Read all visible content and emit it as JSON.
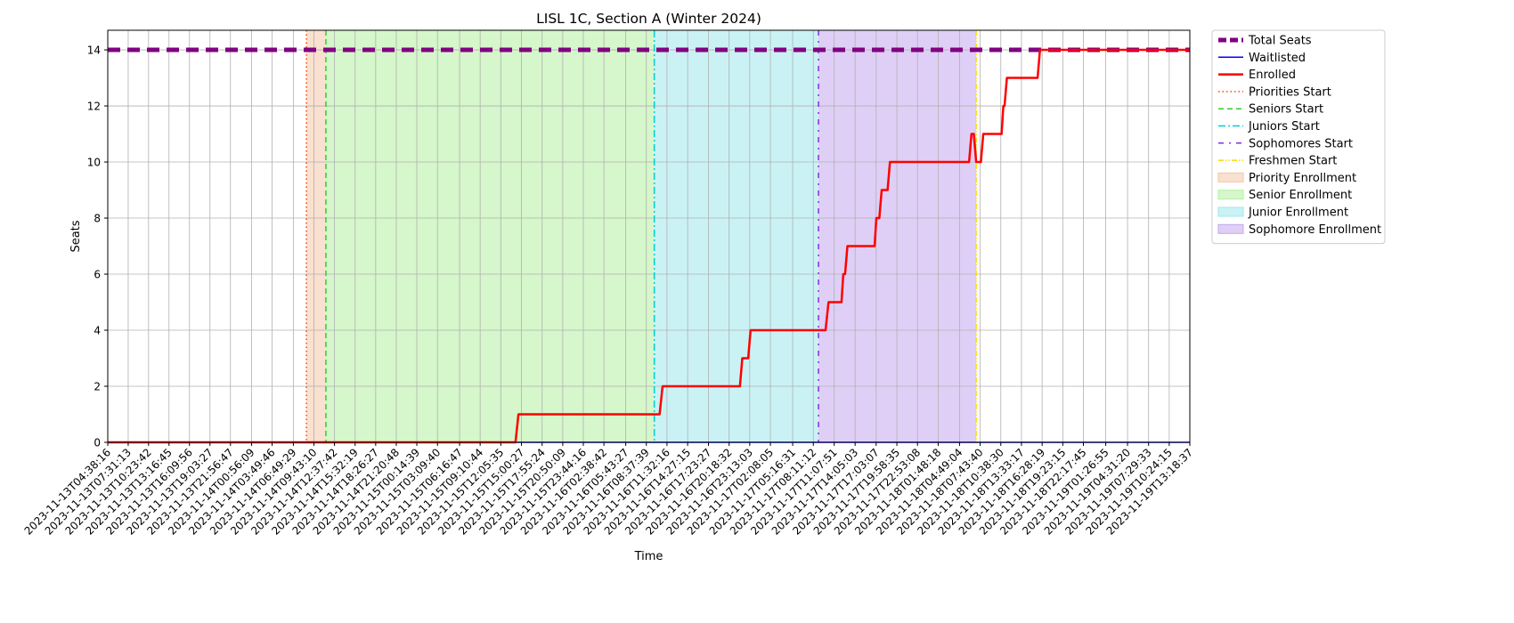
{
  "chart_data": {
    "type": "line",
    "title": "LISL 1C, Section A (Winter 2024)",
    "xlabel": "Time",
    "ylabel": "Seats",
    "ylim": [
      0,
      14.7
    ],
    "xlim": [
      "2023-11-13T04:38:16",
      "2023-11-19T13:18:37"
    ],
    "y_ticks": [
      0,
      2,
      4,
      6,
      8,
      10,
      12,
      14
    ],
    "x_ticks": [
      "2023-11-13T04:38:16",
      "2023-11-13T07:31:13",
      "2023-11-13T10:23:42",
      "2023-11-13T13:16:45",
      "2023-11-13T16:09:56",
      "2023-11-13T19:03:27",
      "2023-11-13T21:56:47",
      "2023-11-14T00:56:09",
      "2023-11-14T03:49:46",
      "2023-11-14T06:49:29",
      "2023-11-14T09:43:10",
      "2023-11-14T12:37:42",
      "2023-11-14T15:32:19",
      "2023-11-14T18:26:27",
      "2023-11-14T21:20:48",
      "2023-11-15T00:14:39",
      "2023-11-15T03:09:40",
      "2023-11-15T06:16:47",
      "2023-11-15T09:10:44",
      "2023-11-15T12:05:35",
      "2023-11-15T15:00:27",
      "2023-11-15T17:55:24",
      "2023-11-15T20:50:09",
      "2023-11-15T23:44:16",
      "2023-11-16T02:38:42",
      "2023-11-16T05:43:27",
      "2023-11-16T08:37:39",
      "2023-11-16T11:32:16",
      "2023-11-16T14:27:15",
      "2023-11-16T17:23:27",
      "2023-11-16T20:18:32",
      "2023-11-16T23:13:03",
      "2023-11-17T02:08:05",
      "2023-11-17T05:16:31",
      "2023-11-17T08:11:12",
      "2023-11-17T11:07:51",
      "2023-11-17T14:05:03",
      "2023-11-17T17:03:07",
      "2023-11-17T19:58:35",
      "2023-11-17T22:53:08",
      "2023-11-18T01:48:18",
      "2023-11-18T04:49:04",
      "2023-11-18T07:43:40",
      "2023-11-18T10:38:30",
      "2023-11-18T13:33:17",
      "2023-11-18T16:28:19",
      "2023-11-18T19:23:15",
      "2023-11-18T22:17:45",
      "2023-11-19T01:26:55",
      "2023-11-19T04:31:20",
      "2023-11-19T07:29:33",
      "2023-11-19T10:24:15",
      "2023-11-19T13:18:37"
    ],
    "series": [
      {
        "name": "Total Seats",
        "color": "#800080",
        "style": "dashed",
        "points": [
          [
            "2023-11-13T04:38:16",
            14
          ],
          [
            "2023-11-19T13:18:37",
            14
          ]
        ]
      },
      {
        "name": "Waitlisted",
        "color": "#0000ff",
        "style": "solid",
        "points": [
          [
            "2023-11-13T04:38:16",
            0
          ],
          [
            "2023-11-19T13:18:37",
            0
          ]
        ]
      },
      {
        "name": "Enrolled",
        "color": "#ff0000",
        "style": "solid",
        "points": [
          [
            "2023-11-13T04:38:16",
            0
          ],
          [
            "2023-11-15T14:10:00",
            0
          ],
          [
            "2023-11-15T14:35:00",
            1
          ],
          [
            "2023-11-16T10:30:00",
            1
          ],
          [
            "2023-11-16T10:55:00",
            2
          ],
          [
            "2023-11-16T21:50:00",
            2
          ],
          [
            "2023-11-16T22:10:00",
            3
          ],
          [
            "2023-11-16T23:00:00",
            3
          ],
          [
            "2023-11-16T23:20:00",
            4
          ],
          [
            "2023-11-17T09:55:00",
            4
          ],
          [
            "2023-11-17T10:20:00",
            5
          ],
          [
            "2023-11-17T12:10:00",
            5
          ],
          [
            "2023-11-17T12:25:00",
            6
          ],
          [
            "2023-11-17T12:40:00",
            6
          ],
          [
            "2023-11-17T13:00:00",
            7
          ],
          [
            "2023-11-17T16:50:00",
            7
          ],
          [
            "2023-11-17T17:05:00",
            8
          ],
          [
            "2023-11-17T17:30:00",
            8
          ],
          [
            "2023-11-17T17:50:00",
            9
          ],
          [
            "2023-11-17T18:40:00",
            9
          ],
          [
            "2023-11-17T19:00:00",
            10
          ],
          [
            "2023-11-18T06:10:00",
            10
          ],
          [
            "2023-11-18T06:30:00",
            11
          ],
          [
            "2023-11-18T06:50:00",
            11
          ],
          [
            "2023-11-18T07:10:00",
            10
          ],
          [
            "2023-11-18T07:50:00",
            10
          ],
          [
            "2023-11-18T08:10:00",
            11
          ],
          [
            "2023-11-18T10:45:00",
            11
          ],
          [
            "2023-11-18T11:00:00",
            12
          ],
          [
            "2023-11-18T11:10:00",
            12
          ],
          [
            "2023-11-18T11:30:00",
            13
          ],
          [
            "2023-11-18T15:50:00",
            13
          ],
          [
            "2023-11-18T16:10:00",
            14
          ],
          [
            "2023-11-19T13:18:37",
            14
          ]
        ]
      }
    ],
    "markers": [
      {
        "name": "Priorities Start",
        "x": "2023-11-14T08:40:00",
        "color": "#ff4500",
        "style": "dotted"
      },
      {
        "name": "Seniors Start",
        "x": "2023-11-14T11:25:00",
        "color": "#32cd32",
        "style": "dashed"
      },
      {
        "name": "Juniors Start",
        "x": "2023-11-16T09:45:00",
        "color": "#00ced1",
        "style": "dashdot"
      },
      {
        "name": "Sophomores Start",
        "x": "2023-11-17T08:55:00",
        "color": "#8a2be2",
        "style": "loosedashdot"
      },
      {
        "name": "Freshmen Start",
        "x": "2023-11-18T07:10:00",
        "color": "#ffd700",
        "style": "dashdotdot"
      }
    ],
    "spans": [
      {
        "name": "Priority Enrollment",
        "from": "2023-11-14T08:40:00",
        "to": "2023-11-14T11:25:00",
        "color": "#f4c6a8"
      },
      {
        "name": "Senior Enrollment",
        "from": "2023-11-14T11:25:00",
        "to": "2023-11-16T09:45:00",
        "color": "#b3f0a0"
      },
      {
        "name": "Junior Enrollment",
        "from": "2023-11-16T09:45:00",
        "to": "2023-11-17T08:55:00",
        "color": "#9ee8ec"
      },
      {
        "name": "Sophomore Enrollment",
        "from": "2023-11-17T08:55:00",
        "to": "2023-11-18T07:10:00",
        "color": "#c4a8ee"
      }
    ],
    "legend": {
      "placement": "outside-upper-right",
      "entries": [
        {
          "label": "Total Seats",
          "kind": "line",
          "color": "#800080",
          "style": "dashed"
        },
        {
          "label": "Waitlisted",
          "kind": "line",
          "color": "#0000ff",
          "style": "solid"
        },
        {
          "label": "Enrolled",
          "kind": "line",
          "color": "#ff0000",
          "style": "solid"
        },
        {
          "label": "Priorities Start",
          "kind": "line",
          "color": "#ff4500",
          "style": "dotted"
        },
        {
          "label": "Seniors Start",
          "kind": "line",
          "color": "#32cd32",
          "style": "dashed"
        },
        {
          "label": "Juniors Start",
          "kind": "line",
          "color": "#00ced1",
          "style": "dashdot"
        },
        {
          "label": "Sophomores Start",
          "kind": "line",
          "color": "#8a2be2",
          "style": "loosedashdot"
        },
        {
          "label": "Freshmen Start",
          "kind": "line",
          "color": "#ffd700",
          "style": "dashdotdot"
        },
        {
          "label": "Priority Enrollment",
          "kind": "patch",
          "color": "#f4c6a8"
        },
        {
          "label": "Senior Enrollment",
          "kind": "patch",
          "color": "#b3f0a0"
        },
        {
          "label": "Junior Enrollment",
          "kind": "patch",
          "color": "#9ee8ec"
        },
        {
          "label": "Sophomore Enrollment",
          "kind": "patch",
          "color": "#c4a8ee"
        }
      ]
    },
    "grid": true
  }
}
